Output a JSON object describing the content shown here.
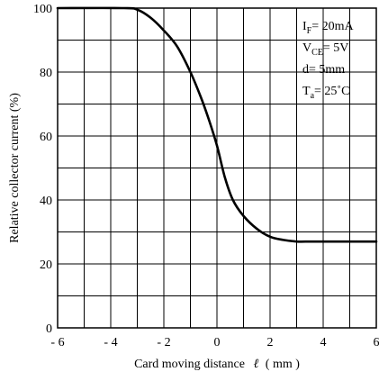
{
  "chart_data": {
    "type": "line",
    "xlabel_text": "Card moving distance",
    "xlabel_symbol": "ℓ",
    "xlabel_unit": "( mm )",
    "ylabel": "Relative collector current   (%)",
    "xlim": [
      -6,
      6
    ],
    "ylim": [
      0,
      100
    ],
    "x_ticks": [
      -6,
      -5,
      -4,
      -3,
      -2,
      -1,
      0,
      1,
      2,
      3,
      4,
      5,
      6
    ],
    "x_tick_labels": [
      {
        "value": -6,
        "label": "- 6"
      },
      {
        "value": -4,
        "label": "- 4"
      },
      {
        "value": -2,
        "label": "- 2"
      },
      {
        "value": 0,
        "label": "0"
      },
      {
        "value": 2,
        "label": "2"
      },
      {
        "value": 4,
        "label": "4"
      },
      {
        "value": 6,
        "label": "6"
      }
    ],
    "y_ticks": [
      0,
      10,
      20,
      30,
      40,
      50,
      60,
      70,
      80,
      90,
      100
    ],
    "y_tick_labels": [
      {
        "value": 0,
        "label": "0"
      },
      {
        "value": 20,
        "label": "20"
      },
      {
        "value": 40,
        "label": "40"
      },
      {
        "value": 60,
        "label": "60"
      },
      {
        "value": 80,
        "label": "80"
      },
      {
        "value": 100,
        "label": "100"
      }
    ],
    "grid": true,
    "series": [
      {
        "x": [
          -6,
          -3.5,
          -3.0,
          -2.5,
          -2.0,
          -1.5,
          -1.0,
          -0.6,
          -0.3,
          0.0,
          0.3,
          0.6,
          1.0,
          1.5,
          2.0,
          2.5,
          3.0,
          3.5,
          4.0,
          5.0,
          6.0
        ],
        "y": [
          100,
          100,
          99.5,
          97,
          93,
          88,
          80,
          72,
          65,
          57,
          47,
          40,
          35,
          31,
          28.5,
          27.5,
          27,
          27,
          27,
          27,
          27
        ]
      }
    ],
    "annotations": [
      {
        "main": "I",
        "sub": "F",
        "rest": "=  20mA"
      },
      {
        "main": "V",
        "sub": "CE",
        "rest": "=  5V"
      },
      {
        "main": "d=  5mm",
        "sub": "",
        "rest": ""
      },
      {
        "main": "T",
        "sub": "a",
        "rest": "=  25˚C"
      }
    ]
  }
}
